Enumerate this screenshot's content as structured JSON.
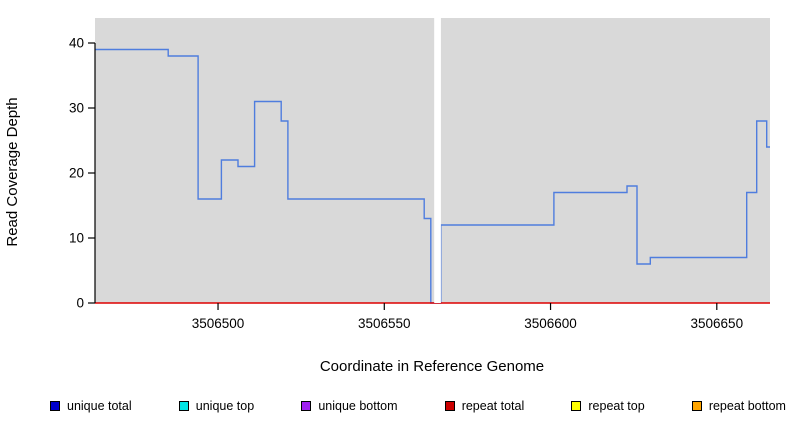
{
  "chart_data": {
    "type": "line",
    "subtype": "step-coverage",
    "title": "",
    "xlabel": "Coordinate in Reference Genome",
    "ylabel": "Read Coverage Depth",
    "x_range": [
      3506463,
      3506666
    ],
    "ylim": [
      0,
      44
    ],
    "x_ticks": [
      3506500,
      3506550,
      3506600,
      3506650
    ],
    "y_ticks": [
      0,
      10,
      20,
      30,
      40
    ],
    "panel_bg": "#d9d9d9",
    "gap_band": {
      "start": 3506565,
      "end": 3506567,
      "color": "#ffffff"
    },
    "series": [
      {
        "name": "unique total coverage",
        "color": "#4f7dde",
        "step_points": [
          [
            3506463,
            39
          ],
          [
            3506485,
            38
          ],
          [
            3506494,
            16
          ],
          [
            3506501,
            22
          ],
          [
            3506506,
            21
          ],
          [
            3506511,
            31
          ],
          [
            3506519,
            28
          ],
          [
            3506521,
            16
          ],
          [
            3506562,
            13
          ],
          [
            3506564,
            0
          ],
          [
            3506567,
            12
          ],
          [
            3506601,
            17
          ],
          [
            3506623,
            18
          ],
          [
            3506626,
            6
          ],
          [
            3506630,
            7
          ],
          [
            3506659,
            17
          ],
          [
            3506662,
            28
          ],
          [
            3506665,
            24
          ],
          [
            3506666,
            24
          ]
        ]
      },
      {
        "name": "repeat total coverage",
        "color": "#dd0000",
        "step_points": [
          [
            3506463,
            0
          ],
          [
            3506666,
            0
          ]
        ]
      }
    ],
    "legend": [
      {
        "label": "unique total",
        "color": "#0000cc"
      },
      {
        "label": "unique top",
        "color": "#00e5e5"
      },
      {
        "label": "unique bottom",
        "color": "#a020f0"
      },
      {
        "label": "repeat total",
        "color": "#cc0000"
      },
      {
        "label": "repeat top",
        "color": "#ffff00"
      },
      {
        "label": "repeat bottom",
        "color": "#ffa500"
      }
    ]
  }
}
